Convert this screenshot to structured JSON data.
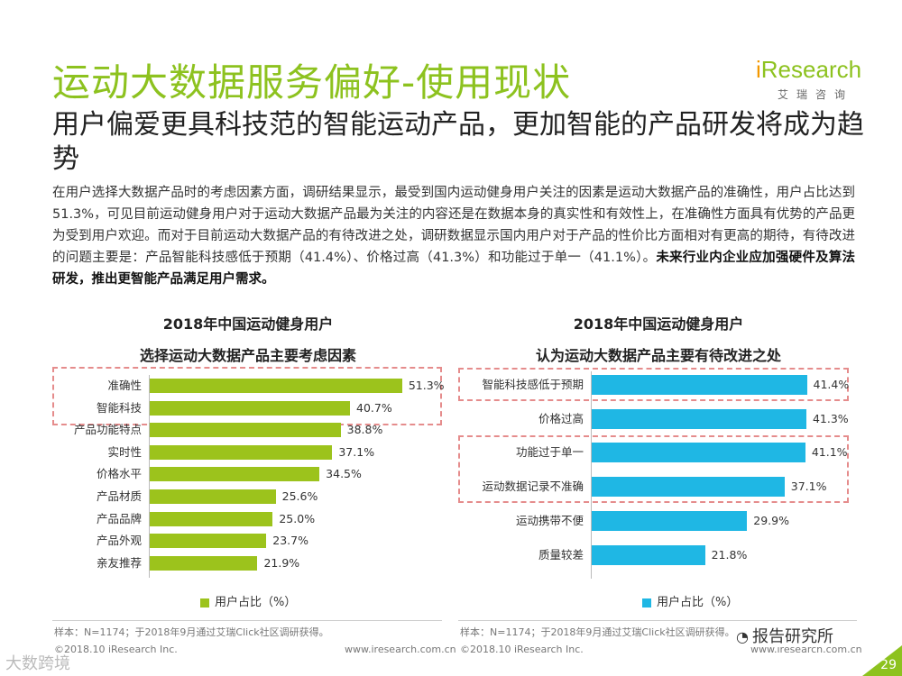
{
  "header": {
    "title": "运动大数据服务偏好-使用现状",
    "logo_i": "i",
    "logo_rest": "Research",
    "logo_sub": "艾瑞咨询"
  },
  "subtitle": "用户偏爱更具科技范的智能运动产品，更加智能的产品研发将成为趋势",
  "paragraph": {
    "normal": "在用户选择大数据产品时的考虑因素方面，调研结果显示，最受到国内运动健身用户关注的因素是运动大数据产品的准确性，用户占比达到51.3%，可见目前运动健身用户对于运动大数据产品最为关注的内容还是在数据本身的真实性和有效性上，在准确性方面具有优势的产品更为受到用户欢迎。而对于目前运动大数据产品的有待改进之处，调研数据显示国内用户对于产品的性价比方面相对有更高的期待，有待改进的问题主要是：产品智能科技感低于预期（41.4%）、价格过高（41.3%）和功能过于单一（41.1%）。",
    "bold": "未来行业内企业应加强硬件及算法研发，推出更智能产品满足用户需求。"
  },
  "chart_data": [
    {
      "type": "bar",
      "orientation": "horizontal",
      "title": "2018年中国运动健身用户",
      "subtitle": "选择运动大数据产品主要考虑因素",
      "categories": [
        "准确性",
        "智能科技",
        "产品功能特点",
        "实时性",
        "价格水平",
        "产品材质",
        "产品品牌",
        "产品外观",
        "亲友推荐"
      ],
      "values": [
        51.3,
        40.7,
        38.8,
        37.1,
        34.5,
        25.6,
        25.0,
        23.7,
        21.9
      ],
      "labels": [
        "51.3%",
        "40.7%",
        "38.8%",
        "37.1%",
        "34.5%",
        "25.6%",
        "25.0%",
        "23.7%",
        "21.9%"
      ],
      "legend": "用户占比（%）",
      "color": "#9cc31c",
      "highlight_groups": [
        [
          0,
          1
        ]
      ],
      "xlim": [
        0,
        55
      ]
    },
    {
      "type": "bar",
      "orientation": "horizontal",
      "title": "2018年中国运动健身用户",
      "subtitle": "认为运动大数据产品主要有待改进之处",
      "categories": [
        "智能科技感低于预期",
        "价格过高",
        "功能过于单一",
        "运动数据记录不准确",
        "运动携带不便",
        "质量较差"
      ],
      "values": [
        41.4,
        41.3,
        41.1,
        37.1,
        29.9,
        21.8
      ],
      "labels": [
        "41.4%",
        "41.3%",
        "41.1%",
        "37.1%",
        "29.9%",
        "21.8%"
      ],
      "legend": "用户占比（%）",
      "color": "#1fb7e4",
      "highlight_groups": [
        [
          0
        ],
        [
          2,
          3
        ]
      ],
      "xlim": [
        0,
        42
      ]
    }
  ],
  "notes": {
    "left": "样本：N=1174；于2018年9月通过艾瑞Click社区调研获得。",
    "right": "样本：N=1174；于2018年9月通过艾瑞Click社区调研获得。"
  },
  "footer": {
    "copyright_left": "©2018.10 iResearch Inc.",
    "url_left": "www.iresearch.com.cn",
    "copyright_right": "©2018.10 iResearch Inc.",
    "url_right": "www.iresearch.com.cn",
    "page_number": "29"
  },
  "watermarks": {
    "bottom_left": "大数跨境",
    "bottom_right": "报告研究所"
  }
}
